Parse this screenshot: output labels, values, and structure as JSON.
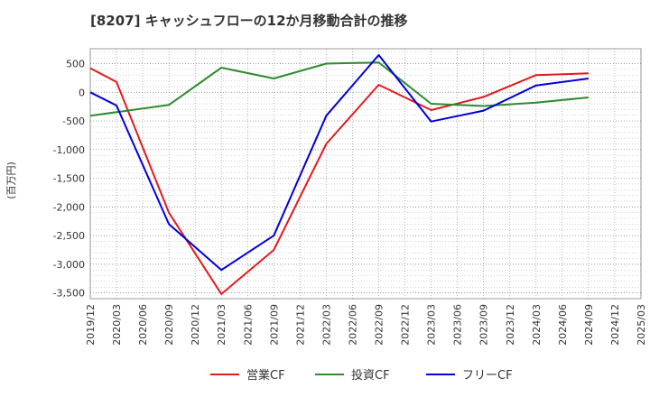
{
  "chart_data": {
    "type": "line",
    "title": "[8207]  キャッシュフローの12か月移動合計の推移",
    "ylabel": "(百万円)",
    "xlabel": "",
    "ylim": [
      -3600,
      760
    ],
    "yticks": [
      500,
      0,
      -500,
      -1000,
      -1500,
      -2000,
      -2500,
      -3000,
      -3500
    ],
    "ytick_labels": [
      "500",
      "0",
      "-500",
      "-1,000",
      "-1,500",
      "-2,000",
      "-2,500",
      "-3,000",
      "-3,500"
    ],
    "categories": [
      "2019/12",
      "2020/03",
      "2020/06",
      "2020/09",
      "2020/12",
      "2021/03",
      "2021/06",
      "2021/09",
      "2021/12",
      "2022/03",
      "2022/06",
      "2022/09",
      "2022/12",
      "2023/03",
      "2023/06",
      "2023/09",
      "2023/12",
      "2024/03",
      "2024/06",
      "2024/09",
      "2024/12",
      "2025/03"
    ],
    "grid": true,
    "legend_position": "bottom",
    "series": [
      {
        "name": "営業CF",
        "color": "#e31a1c",
        "values": [
          420,
          180,
          null,
          -2100,
          null,
          -3520,
          null,
          -2750,
          null,
          -900,
          null,
          130,
          null,
          -310,
          null,
          -80,
          null,
          300,
          null,
          330,
          null,
          null
        ]
      },
      {
        "name": "投資CF",
        "color": "#2e8b2e",
        "values": [
          -410,
          null,
          null,
          -220,
          null,
          430,
          null,
          240,
          null,
          500,
          null,
          520,
          null,
          -200,
          null,
          -240,
          null,
          -180,
          null,
          -90,
          null,
          null
        ]
      },
      {
        "name": "フリーCF",
        "color": "#0000dd",
        "values": [
          0,
          -230,
          null,
          -2300,
          null,
          -3100,
          null,
          -2500,
          null,
          -410,
          null,
          650,
          null,
          -510,
          null,
          -320,
          null,
          120,
          null,
          240,
          null,
          null
        ]
      }
    ]
  }
}
